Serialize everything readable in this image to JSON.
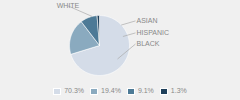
{
  "chart_data": {
    "type": "pie",
    "categories": [
      "WHITE",
      "HISPANIC",
      "BLACK",
      "ASIAN"
    ],
    "values": [
      70.3,
      19.4,
      9.1,
      1.3
    ],
    "value_labels": [
      "70.3%",
      "19.4%",
      "9.1%",
      "1.3%"
    ],
    "colors": [
      "#d4dce8",
      "#8aaabf",
      "#4d7a96",
      "#1e3f5a"
    ],
    "legend": "bottom"
  }
}
